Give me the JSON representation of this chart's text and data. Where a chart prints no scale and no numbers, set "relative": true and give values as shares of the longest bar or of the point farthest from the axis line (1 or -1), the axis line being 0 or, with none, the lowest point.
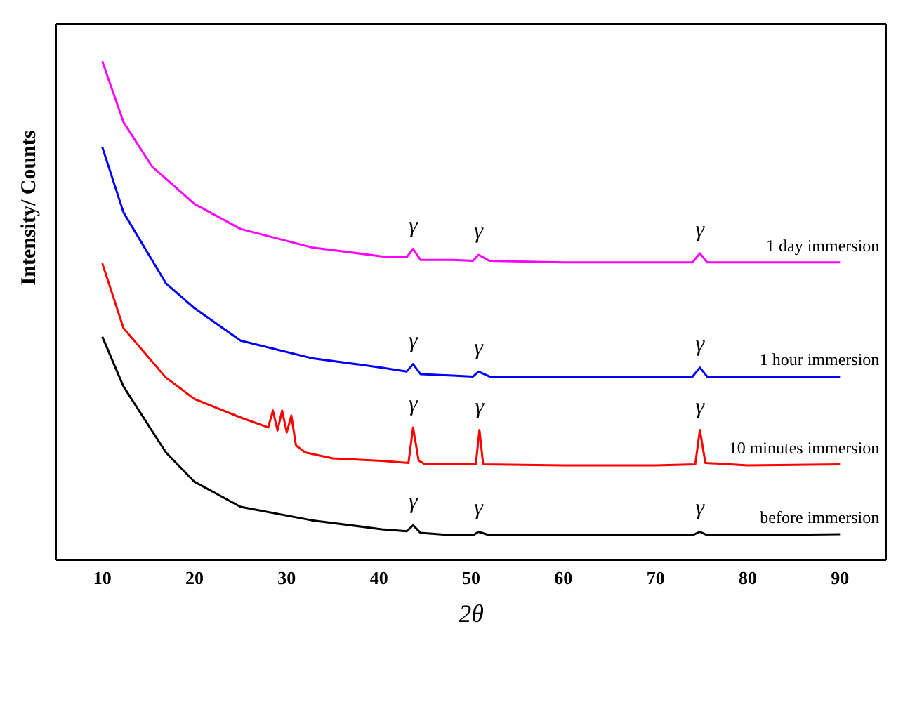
{
  "chart_data": {
    "type": "line",
    "xlabel": "2θ",
    "ylabel": "Intensity/ Counts",
    "relative": true,
    "tick_labels": "x",
    "xlim": [
      5,
      95
    ],
    "xticks": [
      10,
      20,
      30,
      40,
      50,
      60,
      70,
      80,
      90
    ],
    "series": [
      {
        "name": "1 day immersion",
        "color": "#ff00ff",
        "x": [
          10,
          12.3,
          15.4,
          20,
          25,
          32.7,
          40.3,
          43,
          43.7,
          44.5,
          48,
          50.2,
          50.8,
          52,
          60,
          70,
          74,
          74.8,
          75.6,
          80,
          90
        ],
        "values": [
          1.0,
          0.878,
          0.789,
          0.714,
          0.664,
          0.627,
          0.609,
          0.607,
          0.624,
          0.602,
          0.602,
          0.6,
          0.612,
          0.6,
          0.597,
          0.597,
          0.597,
          0.615,
          0.597,
          0.597,
          0.597
        ]
      },
      {
        "name": "1 hour immersion",
        "color": "#0000ff",
        "x": [
          10,
          12.3,
          16.9,
          20,
          25,
          32.7,
          40.3,
          43,
          43.7,
          44.5,
          48,
          50.2,
          50.8,
          52,
          60,
          70,
          74,
          74.8,
          75.6,
          80,
          90
        ],
        "values": [
          0.828,
          0.697,
          0.555,
          0.505,
          0.44,
          0.405,
          0.386,
          0.378,
          0.393,
          0.373,
          0.37,
          0.368,
          0.378,
          0.368,
          0.368,
          0.368,
          0.368,
          0.386,
          0.368,
          0.368,
          0.368
        ]
      },
      {
        "name": "10 minutes immersion",
        "color": "#ff0000",
        "x": [
          10,
          12.3,
          16.9,
          20,
          25,
          28,
          28.5,
          29,
          29.5,
          30,
          30.5,
          31,
          32,
          35,
          40.3,
          43.2,
          43.7,
          44.3,
          45,
          50.5,
          50.9,
          51.3,
          60,
          70,
          74.3,
          74.8,
          75.4,
          80,
          90
        ],
        "values": [
          0.595,
          0.465,
          0.366,
          0.323,
          0.286,
          0.266,
          0.3,
          0.26,
          0.3,
          0.256,
          0.29,
          0.23,
          0.216,
          0.204,
          0.199,
          0.195,
          0.266,
          0.2,
          0.192,
          0.192,
          0.261,
          0.192,
          0.19,
          0.19,
          0.192,
          0.261,
          0.195,
          0.19,
          0.192
        ]
      },
      {
        "name": "before immersion",
        "color": "#000000",
        "x": [
          10,
          12.3,
          16.9,
          20,
          25,
          32.7,
          40.3,
          43,
          43.7,
          44.5,
          48,
          50.2,
          50.8,
          52,
          60,
          70,
          74,
          74.8,
          75.6,
          80,
          90
        ],
        "values": [
          0.448,
          0.348,
          0.216,
          0.157,
          0.107,
          0.08,
          0.062,
          0.058,
          0.07,
          0.055,
          0.05,
          0.05,
          0.057,
          0.05,
          0.05,
          0.05,
          0.05,
          0.057,
          0.05,
          0.05,
          0.052
        ]
      }
    ],
    "annotations": [
      {
        "text": "γ",
        "x": 43.7,
        "y": 0.624
      },
      {
        "text": "γ",
        "x": 50.8,
        "y": 0.612
      },
      {
        "text": "γ",
        "x": 74.8,
        "y": 0.615
      },
      {
        "text": "γ",
        "x": 43.7,
        "y": 0.393
      },
      {
        "text": "γ",
        "x": 50.8,
        "y": 0.378
      },
      {
        "text": "γ",
        "x": 74.8,
        "y": 0.386
      },
      {
        "text": "γ",
        "x": 43.7,
        "y": 0.266
      },
      {
        "text": "γ",
        "x": 50.9,
        "y": 0.261
      },
      {
        "text": "γ",
        "x": 74.8,
        "y": 0.261
      },
      {
        "text": "γ",
        "x": 43.7,
        "y": 0.07
      },
      {
        "text": "γ",
        "x": 50.8,
        "y": 0.057
      },
      {
        "text": "γ",
        "x": 74.8,
        "y": 0.057
      }
    ]
  }
}
